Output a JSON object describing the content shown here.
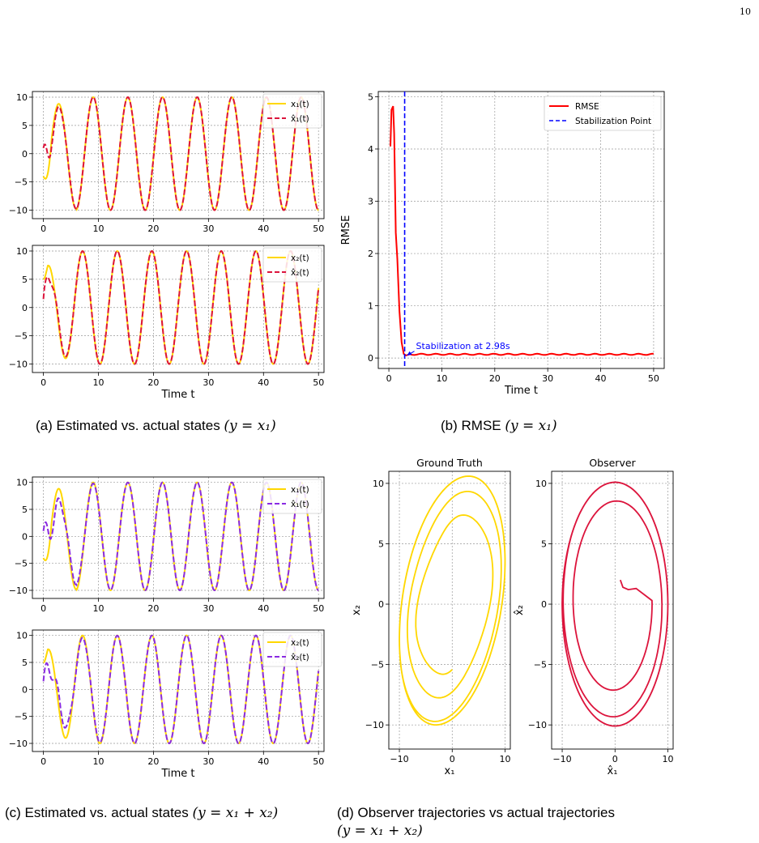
{
  "page_number": "10",
  "colors": {
    "gold": "#FFD700",
    "crimson": "#DC143C",
    "purple": "#8A2BE2",
    "red": "#FF0000",
    "blue": "#0000FF"
  },
  "captions": {
    "a": {
      "text": "(a) Estimated vs. actual states ",
      "math": "(y = x₁)"
    },
    "b": {
      "text": "(b) RMSE ",
      "math": "(y = x₁)"
    },
    "c": {
      "text": "(c) Estimated vs. actual states ",
      "math": "(y = x₁ + x₂)"
    },
    "d": {
      "text": "(d)  Observer  trajectories  vs  actual  trajectories",
      "math": "(y = x₁ + x₂)"
    }
  },
  "chart_data": [
    {
      "id": "a_top",
      "type": "line",
      "xlim": [
        -2,
        51
      ],
      "ylim": [
        -11.5,
        11
      ],
      "xticks": [
        "0",
        "10",
        "20",
        "30",
        "40",
        "50"
      ],
      "yticks": [
        "10",
        "5",
        "0",
        "−5",
        "−10"
      ],
      "xlabel": "",
      "series": [
        {
          "name": "x₁(t)",
          "style": "solid",
          "color": "#FFD700",
          "amp": 10,
          "period": 6.3,
          "phase": 0.1,
          "init": -4
        },
        {
          "name": "x̂₁(t)",
          "style": "dashed",
          "color": "#DC143C",
          "amp": 10,
          "period": 6.3,
          "phase": 0.1,
          "init": 1
        }
      ]
    },
    {
      "id": "a_bottom",
      "type": "line",
      "xlim": [
        -2,
        51
      ],
      "ylim": [
        -11.5,
        11
      ],
      "xticks": [
        "0",
        "10",
        "20",
        "30",
        "40",
        "50"
      ],
      "yticks": [
        "10",
        "5",
        "0",
        "−5",
        "−10"
      ],
      "xlabel": "Time t",
      "series": [
        {
          "name": "x₂(t)",
          "style": "solid",
          "color": "#FFD700"
        },
        {
          "name": "x̂₂(t)",
          "style": "dashed",
          "color": "#DC143C"
        }
      ]
    },
    {
      "id": "b",
      "type": "line",
      "xlim": [
        -2,
        52
      ],
      "ylim": [
        -0.2,
        5.1
      ],
      "xticks": [
        "0",
        "10",
        "20",
        "30",
        "40",
        "50"
      ],
      "yticks": [
        "5",
        "4",
        "3",
        "2",
        "1",
        "0"
      ],
      "xlabel": "Time t",
      "ylabel": "RMSE",
      "series": [
        {
          "name": "RMSE",
          "color": "#FF0000",
          "x": [
            0.3,
            0.5,
            0.8,
            1.0,
            1.3,
            1.6,
            2.0,
            2.4,
            2.8,
            3.2,
            4,
            6,
            10,
            20,
            30,
            40,
            50
          ],
          "y": [
            4.05,
            4.75,
            4.82,
            4.3,
            2.4,
            1.9,
            0.9,
            0.3,
            0.08,
            0.05,
            0.06,
            0.07,
            0.07,
            0.07,
            0.08,
            0.07,
            0.08
          ]
        },
        {
          "name": "Stabilization Point",
          "color": "#0000FF",
          "x": 2.98
        }
      ],
      "annotation": "Stabilization at 2.98s"
    },
    {
      "id": "c_top",
      "type": "line",
      "xlim": [
        -2,
        51
      ],
      "ylim": [
        -11.5,
        11
      ],
      "xticks": [
        "0",
        "10",
        "20",
        "30",
        "40",
        "50"
      ],
      "yticks": [
        "10",
        "5",
        "0",
        "−5",
        "−10"
      ],
      "xlabel": "",
      "series": [
        {
          "name": "x₁(t)",
          "style": "solid",
          "color": "#FFD700"
        },
        {
          "name": "x̂₁(t)",
          "style": "dashed",
          "color": "#8A2BE2"
        }
      ]
    },
    {
      "id": "c_bottom",
      "type": "line",
      "xlim": [
        -2,
        51
      ],
      "ylim": [
        -11.5,
        11
      ],
      "xticks": [
        "0",
        "10",
        "20",
        "30",
        "40",
        "50"
      ],
      "yticks": [
        "10",
        "5",
        "0",
        "−5",
        "−10"
      ],
      "xlabel": "Time t",
      "series": [
        {
          "name": "x₂(t)",
          "style": "solid",
          "color": "#FFD700"
        },
        {
          "name": "x̂₂(t)",
          "style": "dashed",
          "color": "#8A2BE2"
        }
      ]
    },
    {
      "id": "d_left",
      "type": "line",
      "title": "Ground Truth",
      "xlim": [
        -12,
        11
      ],
      "ylim": [
        -12,
        11
      ],
      "xticks": [
        "−10",
        "0",
        "10"
      ],
      "yticks": [
        "10",
        "5",
        "0",
        "−5",
        "−10"
      ],
      "xlabel": "x₁",
      "ylabel": "x₂"
    },
    {
      "id": "d_right",
      "type": "line",
      "title": "Observer",
      "xlim": [
        -12,
        11
      ],
      "ylim": [
        -12,
        11
      ],
      "xticks": [
        "−10",
        "0",
        "10"
      ],
      "yticks": [
        "10",
        "5",
        "0",
        "−5",
        "−10"
      ],
      "xlabel": "x̂₁",
      "ylabel": "x̂₂"
    }
  ]
}
